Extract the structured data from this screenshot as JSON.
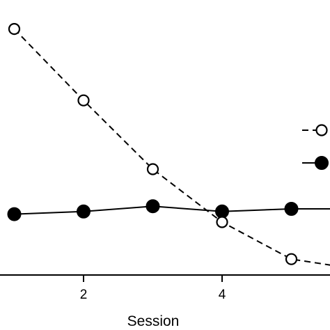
{
  "chart_data": {
    "type": "line",
    "xlabel": "Session",
    "ylabel": "",
    "title": "",
    "x_ticks": [
      2,
      4
    ],
    "x_tick_labels": [
      "2",
      "4"
    ],
    "xlim": [
      0.9,
      6.5
    ],
    "ylim": [
      0,
      1
    ],
    "grid": false,
    "legend": "right",
    "series": [
      {
        "marker": "open-circle",
        "line_style": "dashed",
        "color": "#000000",
        "x": [
          1,
          2,
          3,
          4,
          5,
          6
        ],
        "y": [
          0.93,
          0.66,
          0.4,
          0.2,
          0.06,
          0.02
        ]
      },
      {
        "marker": "filled-circle",
        "line_style": "solid",
        "color": "#000000",
        "x": [
          1,
          2,
          3,
          4,
          5,
          6
        ],
        "y": [
          0.23,
          0.24,
          0.26,
          0.24,
          0.25,
          0.25
        ]
      }
    ]
  }
}
